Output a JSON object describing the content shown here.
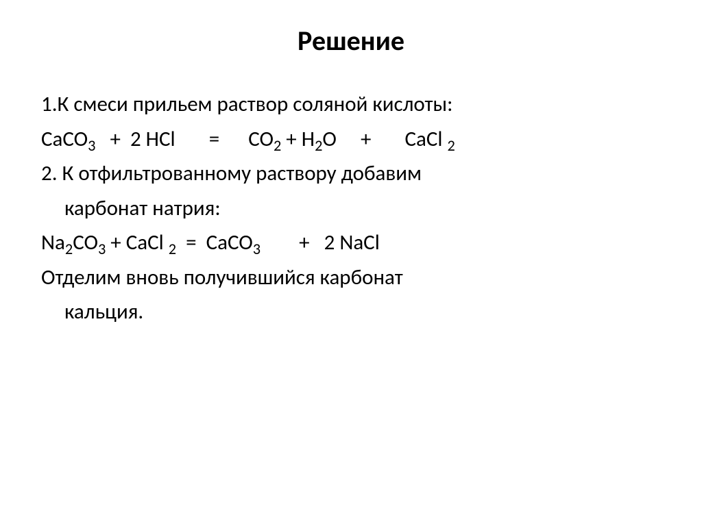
{
  "title": "Решение",
  "lines": {
    "l1": "1.К смеси прильем раствор соляной кислоты:",
    "l2_pre": "CaCO",
    "l2_s1": "3",
    "l2_mid1": "   +  2 HCl       =      CO",
    "l2_s2": "2",
    "l2_mid2": " + H",
    "l2_s3": "2",
    "l2_mid3": "O     +       CaCl ",
    "l2_s4": "2",
    "l3": "2. К отфильтрованному раствору добавим",
    "l3b": "карбонат натрия:",
    "l4_pre": "Na",
    "l4_s1": "2",
    "l4_mid1": "CO",
    "l4_s2": "3",
    "l4_mid2": " + CaCl ",
    "l4_s3": "2",
    "l4_mid3": "  =  CaCO",
    "l4_s4": "3",
    "l4_mid4": "        +   2 NaCl",
    "l5": "Отделим вновь получившийся карбонат",
    "l5b": "кальция."
  },
  "colors": {
    "bg": "#ffffff",
    "text": "#000000"
  },
  "fonts": {
    "title_size": 40,
    "body_size": 31,
    "title_weight": "bold",
    "body_weight": "normal"
  }
}
